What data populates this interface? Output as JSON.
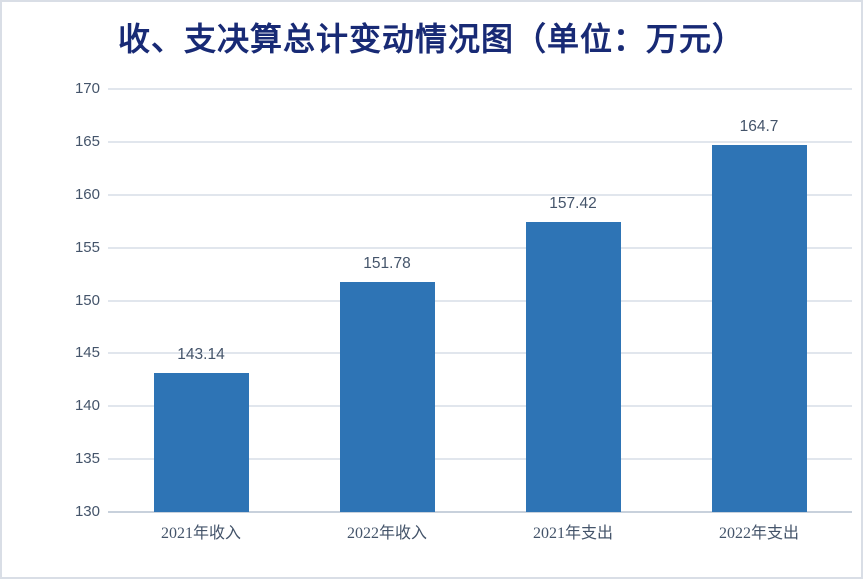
{
  "chart_data": {
    "type": "bar",
    "title": "收、支决算总计变动情况图（单位：万元）",
    "categories": [
      "2021年收入",
      "2022年收入",
      "2021年支出",
      "2022年支出"
    ],
    "values": [
      143.14,
      151.78,
      157.42,
      164.7
    ],
    "data_labels": [
      "143.14",
      "151.78",
      "157.42",
      "164.7"
    ],
    "ylim": [
      130,
      170
    ],
    "ytick_step": 5,
    "yticks": [
      "130",
      "135",
      "140",
      "145",
      "150",
      "155",
      "160",
      "165",
      "170"
    ],
    "xlabel": "",
    "ylabel": "",
    "grid": "horizontal gridlines on",
    "legend": "none",
    "bar_color": "#2E74B5",
    "title_color": "#182A75",
    "axis_label_color": "#44546A",
    "data_label_color": "#44546A",
    "gridline_color": "#E1E6ED",
    "axis_line_color": "#C8D1DC",
    "border_color": "#D9DEE6",
    "background_color": "#FFFFFF"
  }
}
